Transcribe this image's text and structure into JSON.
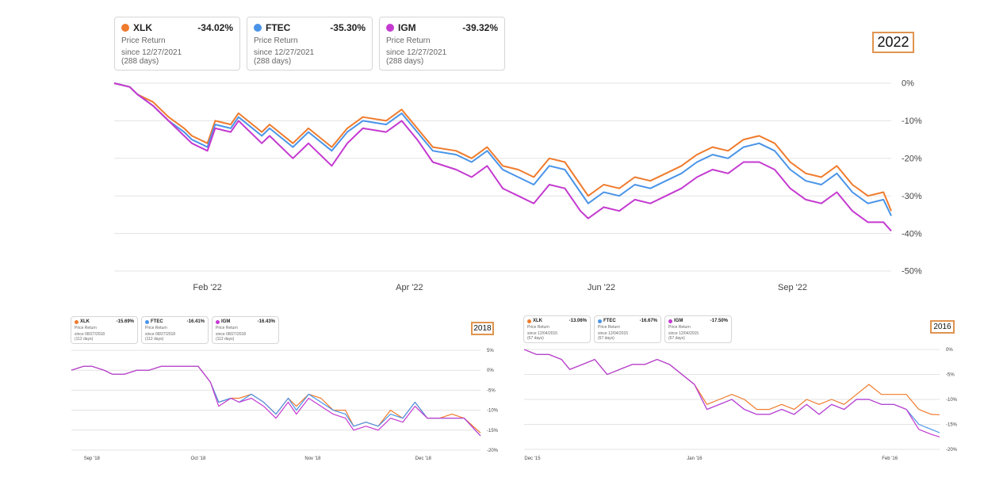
{
  "colors": {
    "XLK": "#ef7b2d",
    "FTEC": "#4a94e8",
    "IGM": "#c43ad0",
    "highlight": "#e0944f",
    "grid": "#e3e3e3"
  },
  "chart_data": [
    {
      "type": "line",
      "year_badge": "2022",
      "legend": [
        {
          "ticker": "XLK",
          "ret": "-34.02%",
          "label": "Price Return",
          "since": "since 12/27/2021",
          "days": "(288 days)"
        },
        {
          "ticker": "FTEC",
          "ret": "-35.30%",
          "label": "Price Return",
          "since": "since 12/27/2021",
          "days": "(288 days)"
        },
        {
          "ticker": "IGM",
          "ret": "-39.32%",
          "label": "Price Return",
          "since": "since 12/27/2021",
          "days": "(288 days)"
        }
      ],
      "x_ticks": [
        {
          "x": 0.12,
          "label": "Feb '22"
        },
        {
          "x": 0.38,
          "label": "Apr '22"
        },
        {
          "x": 0.627,
          "label": "Jun '22"
        },
        {
          "x": 0.873,
          "label": "Sep '22"
        }
      ],
      "y_ticks": [
        "0%",
        "-10%",
        "-20%",
        "-30%",
        "-40%",
        "-50%"
      ],
      "ylim": [
        -50,
        0
      ],
      "y_tick_values": [
        0,
        -10,
        -20,
        -30,
        -40,
        -50
      ],
      "series": [
        {
          "name": "XLK",
          "x": [
            0,
            0.02,
            0.03,
            0.05,
            0.07,
            0.09,
            0.1,
            0.12,
            0.13,
            0.15,
            0.16,
            0.19,
            0.2,
            0.23,
            0.25,
            0.28,
            0.3,
            0.32,
            0.35,
            0.37,
            0.39,
            0.41,
            0.44,
            0.46,
            0.48,
            0.5,
            0.52,
            0.54,
            0.56,
            0.58,
            0.6,
            0.61,
            0.63,
            0.65,
            0.67,
            0.69,
            0.71,
            0.73,
            0.75,
            0.77,
            0.79,
            0.81,
            0.83,
            0.85,
            0.87,
            0.89,
            0.91,
            0.93,
            0.95,
            0.97,
            0.99,
            1
          ],
          "y": [
            0,
            -1,
            -3,
            -5,
            -9,
            -12,
            -14,
            -16,
            -10,
            -11,
            -8,
            -13,
            -11,
            -16,
            -12,
            -17,
            -12,
            -9,
            -10,
            -7,
            -12,
            -17,
            -18,
            -20,
            -17,
            -22,
            -23,
            -25,
            -20,
            -21,
            -27,
            -30,
            -27,
            -28,
            -25,
            -26,
            -24,
            -22,
            -19,
            -17,
            -18,
            -15,
            -14,
            -16,
            -21,
            -24,
            -25,
            -22,
            -27,
            -30,
            -29,
            -34.02
          ]
        },
        {
          "name": "FTEC",
          "x": [
            0,
            0.02,
            0.03,
            0.05,
            0.07,
            0.09,
            0.1,
            0.12,
            0.13,
            0.15,
            0.16,
            0.19,
            0.2,
            0.23,
            0.25,
            0.28,
            0.3,
            0.32,
            0.35,
            0.37,
            0.39,
            0.41,
            0.44,
            0.46,
            0.48,
            0.5,
            0.52,
            0.54,
            0.56,
            0.58,
            0.6,
            0.61,
            0.63,
            0.65,
            0.67,
            0.69,
            0.71,
            0.73,
            0.75,
            0.77,
            0.79,
            0.81,
            0.83,
            0.85,
            0.87,
            0.89,
            0.91,
            0.93,
            0.95,
            0.97,
            0.99,
            1
          ],
          "y": [
            0,
            -1,
            -3,
            -6,
            -10,
            -13,
            -15,
            -17,
            -11,
            -12,
            -9,
            -14,
            -12,
            -17,
            -13,
            -18,
            -13,
            -10,
            -11,
            -8,
            -13,
            -18,
            -19,
            -21,
            -18,
            -23,
            -25,
            -27,
            -22,
            -23,
            -29,
            -32,
            -29,
            -30,
            -27,
            -28,
            -26,
            -24,
            -21,
            -19,
            -20,
            -17,
            -16,
            -18,
            -23,
            -26,
            -27,
            -24,
            -29,
            -32,
            -31,
            -35.3
          ]
        },
        {
          "name": "IGM",
          "x": [
            0,
            0.02,
            0.03,
            0.05,
            0.07,
            0.09,
            0.1,
            0.12,
            0.13,
            0.15,
            0.16,
            0.19,
            0.2,
            0.23,
            0.25,
            0.28,
            0.3,
            0.32,
            0.35,
            0.37,
            0.39,
            0.41,
            0.44,
            0.46,
            0.48,
            0.5,
            0.52,
            0.54,
            0.56,
            0.58,
            0.6,
            0.61,
            0.63,
            0.65,
            0.67,
            0.69,
            0.71,
            0.73,
            0.75,
            0.77,
            0.79,
            0.81,
            0.83,
            0.85,
            0.87,
            0.89,
            0.91,
            0.93,
            0.95,
            0.97,
            0.99,
            1
          ],
          "y": [
            0,
            -1,
            -3,
            -6,
            -10,
            -14,
            -16,
            -18,
            -12,
            -13,
            -10,
            -16,
            -14,
            -20,
            -16,
            -22,
            -16,
            -12,
            -13,
            -10,
            -15,
            -21,
            -23,
            -25,
            -22,
            -28,
            -30,
            -32,
            -27,
            -28,
            -34,
            -36,
            -33,
            -34,
            -31,
            -32,
            -30,
            -28,
            -25,
            -23,
            -24,
            -21,
            -21,
            -23,
            -28,
            -31,
            -32,
            -29,
            -34,
            -37,
            -37,
            -39.32
          ]
        }
      ]
    },
    {
      "type": "line",
      "year_badge": "2018",
      "legend": [
        {
          "ticker": "XLK",
          "ret": "-15.69%",
          "label": "Price Return",
          "since": "since 08/27/2018",
          "days": "(112 days)"
        },
        {
          "ticker": "FTEC",
          "ret": "-16.41%",
          "label": "Price Return",
          "since": "since 08/27/2018",
          "days": "(112 days)"
        },
        {
          "ticker": "IGM",
          "ret": "-16.43%",
          "label": "Price Return",
          "since": "since 08/27/2018",
          "days": "(112 days)"
        }
      ],
      "x_ticks": [
        {
          "x": 0.05,
          "label": "Sep '18"
        },
        {
          "x": 0.31,
          "label": "Oct '18"
        },
        {
          "x": 0.59,
          "label": "Nov '18"
        },
        {
          "x": 0.86,
          "label": "Dec '18"
        }
      ],
      "y_ticks": [
        "5%",
        "0%",
        "-5%",
        "-10%",
        "-15%",
        "-20%"
      ],
      "ylim": [
        -20,
        5
      ],
      "y_tick_values": [
        5,
        0,
        -5,
        -10,
        -15,
        -20
      ],
      "series": [
        {
          "name": "XLK",
          "x": [
            0,
            0.03,
            0.05,
            0.08,
            0.1,
            0.13,
            0.16,
            0.19,
            0.22,
            0.25,
            0.28,
            0.31,
            0.34,
            0.36,
            0.39,
            0.41,
            0.44,
            0.47,
            0.5,
            0.53,
            0.55,
            0.58,
            0.61,
            0.64,
            0.67,
            0.69,
            0.72,
            0.75,
            0.78,
            0.81,
            0.84,
            0.87,
            0.9,
            0.93,
            0.96,
            1
          ],
          "y": [
            0,
            1,
            1,
            0,
            -1,
            -1,
            0,
            0,
            1,
            1,
            1,
            1,
            -3,
            -8,
            -7,
            -7,
            -6,
            -8,
            -11,
            -7,
            -9,
            -6,
            -7,
            -10,
            -10,
            -14,
            -13,
            -14,
            -10,
            -12,
            -8,
            -12,
            -12,
            -11,
            -12,
            -15.69
          ]
        },
        {
          "name": "FTEC",
          "x": [
            0,
            0.03,
            0.05,
            0.08,
            0.1,
            0.13,
            0.16,
            0.19,
            0.22,
            0.25,
            0.28,
            0.31,
            0.34,
            0.36,
            0.39,
            0.41,
            0.44,
            0.47,
            0.5,
            0.53,
            0.55,
            0.58,
            0.61,
            0.64,
            0.67,
            0.69,
            0.72,
            0.75,
            0.78,
            0.81,
            0.84,
            0.87,
            0.9,
            0.93,
            0.96,
            1
          ],
          "y": [
            0,
            1,
            1,
            0,
            -1,
            -1,
            0,
            0,
            1,
            1,
            1,
            1,
            -3,
            -8,
            -7,
            -8,
            -6,
            -8,
            -11,
            -7,
            -10,
            -6,
            -8,
            -10,
            -11,
            -14,
            -13,
            -14,
            -11,
            -12,
            -8,
            -12,
            -12,
            -12,
            -12,
            -16.41
          ]
        },
        {
          "name": "IGM",
          "x": [
            0,
            0.03,
            0.05,
            0.08,
            0.1,
            0.13,
            0.16,
            0.19,
            0.22,
            0.25,
            0.28,
            0.31,
            0.34,
            0.36,
            0.39,
            0.41,
            0.44,
            0.47,
            0.5,
            0.53,
            0.55,
            0.58,
            0.61,
            0.64,
            0.67,
            0.69,
            0.72,
            0.75,
            0.78,
            0.81,
            0.84,
            0.87,
            0.9,
            0.93,
            0.96,
            1
          ],
          "y": [
            0,
            1,
            1,
            0,
            -1,
            -1,
            0,
            0,
            1,
            1,
            1,
            1,
            -3,
            -9,
            -7,
            -8,
            -7,
            -9,
            -12,
            -8,
            -11,
            -7,
            -9,
            -11,
            -12,
            -15,
            -14,
            -15,
            -12,
            -13,
            -9,
            -12,
            -12,
            -12,
            -12,
            -16.43
          ]
        }
      ]
    },
    {
      "type": "line",
      "year_badge": "2016",
      "legend": [
        {
          "ticker": "XLK",
          "ret": "-13.06%",
          "label": "Price Return",
          "since": "since 12/04/2015",
          "days": "(67 days)"
        },
        {
          "ticker": "FTEC",
          "ret": "-16.67%",
          "label": "Price Return",
          "since": "since 12/04/2015",
          "days": "(67 days)"
        },
        {
          "ticker": "IGM",
          "ret": "-17.50%",
          "label": "Price Return",
          "since": "since 12/04/2015",
          "days": "(67 days)"
        }
      ],
      "x_ticks": [
        {
          "x": 0.02,
          "label": "Dec '15"
        },
        {
          "x": 0.41,
          "label": "Jan '16"
        },
        {
          "x": 0.88,
          "label": "Feb '16"
        }
      ],
      "y_ticks": [
        "0%",
        "-5%",
        "-10%",
        "-15%",
        "-20%"
      ],
      "ylim": [
        -20,
        0
      ],
      "y_tick_values": [
        0,
        -5,
        -10,
        -15,
        -20
      ],
      "series": [
        {
          "name": "XLK",
          "x": [
            0,
            0.03,
            0.06,
            0.09,
            0.11,
            0.14,
            0.17,
            0.2,
            0.23,
            0.26,
            0.29,
            0.32,
            0.35,
            0.38,
            0.41,
            0.44,
            0.47,
            0.5,
            0.53,
            0.56,
            0.59,
            0.62,
            0.65,
            0.68,
            0.71,
            0.74,
            0.77,
            0.8,
            0.83,
            0.86,
            0.89,
            0.92,
            0.95,
            0.98,
            1
          ],
          "y": [
            0,
            -1,
            -1,
            -2,
            -4,
            -3,
            -2,
            -5,
            -4,
            -3,
            -3,
            -2,
            -3,
            -5,
            -7,
            -11,
            -10,
            -9,
            -10,
            -12,
            -12,
            -11,
            -12,
            -10,
            -11,
            -10,
            -11,
            -9,
            -7,
            -9,
            -9,
            -9,
            -12,
            -13,
            -13.06
          ]
        },
        {
          "name": "FTEC",
          "x": [
            0,
            0.03,
            0.06,
            0.09,
            0.11,
            0.14,
            0.17,
            0.2,
            0.23,
            0.26,
            0.29,
            0.32,
            0.35,
            0.38,
            0.41,
            0.44,
            0.47,
            0.5,
            0.53,
            0.56,
            0.59,
            0.62,
            0.65,
            0.68,
            0.71,
            0.74,
            0.77,
            0.8,
            0.83,
            0.86,
            0.89,
            0.92,
            0.95,
            0.98,
            1
          ],
          "y": [
            0,
            -1,
            -1,
            -2,
            -4,
            -3,
            -2,
            -5,
            -4,
            -3,
            -3,
            -2,
            -3,
            -5,
            -7,
            -12,
            -11,
            -10,
            -12,
            -13,
            -13,
            -12,
            -13,
            -11,
            -13,
            -11,
            -12,
            -10,
            -10,
            -11,
            -11,
            -12,
            -15,
            -16,
            -16.67
          ]
        },
        {
          "name": "IGM",
          "x": [
            0,
            0.03,
            0.06,
            0.09,
            0.11,
            0.14,
            0.17,
            0.2,
            0.23,
            0.26,
            0.29,
            0.32,
            0.35,
            0.38,
            0.41,
            0.44,
            0.47,
            0.5,
            0.53,
            0.56,
            0.59,
            0.62,
            0.65,
            0.68,
            0.71,
            0.74,
            0.77,
            0.8,
            0.83,
            0.86,
            0.89,
            0.92,
            0.95,
            0.98,
            1
          ],
          "y": [
            0,
            -1,
            -1,
            -2,
            -4,
            -3,
            -2,
            -5,
            -4,
            -3,
            -3,
            -2,
            -3,
            -5,
            -7,
            -12,
            -11,
            -10,
            -12,
            -13,
            -13,
            -12,
            -13,
            -11,
            -13,
            -11,
            -12,
            -10,
            -10,
            -11,
            -11,
            -12,
            -16,
            -17,
            -17.5
          ]
        }
      ]
    }
  ]
}
